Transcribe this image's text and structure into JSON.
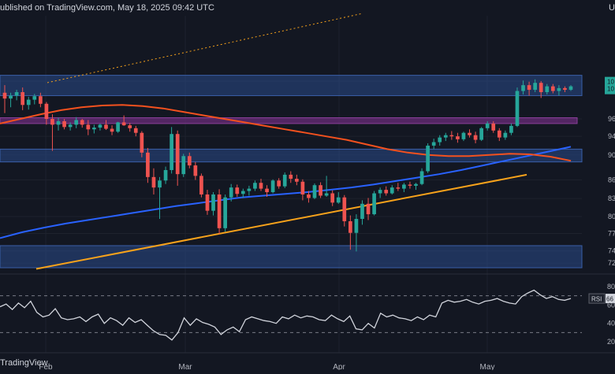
{
  "header": {
    "published_text": "ublished on TradingView.com, May 18, 2025 09:42 UTC",
    "corner_text": "U"
  },
  "brand": {
    "text": "TradingView"
  },
  "colors": {
    "background": "#131722",
    "up": "#26a69a",
    "down": "#ef5350",
    "ma_short": "#f4511e",
    "ma_long": "#2962ff",
    "trendline": "#f7a21b",
    "zone_blue": "#2a4a8a",
    "zone_purple": "#6a2c7a",
    "rsi_line": "#d1d4dc",
    "grid": "#1e222d"
  },
  "chart_data": [
    {
      "type": "candlestick",
      "x_axis": {
        "ticks": [
          "Feb",
          "Mar",
          "Apr",
          "May"
        ]
      },
      "y_axis": {
        "ticks": [
          "10",
          "96",
          "94",
          "90",
          "86",
          "83",
          "80",
          "77",
          "74",
          "72"
        ],
        "range": [
          71,
          110
        ]
      },
      "price_labels": [
        "10",
        "10"
      ],
      "candles": [
        {
          "o": 101.5,
          "h": 102.8,
          "l": 98.0,
          "c": 100.5
        },
        {
          "o": 100.5,
          "h": 101.5,
          "l": 99.0,
          "c": 101.0
        },
        {
          "o": 101.0,
          "h": 102.0,
          "l": 100.2,
          "c": 101.6
        },
        {
          "o": 101.6,
          "h": 102.4,
          "l": 98.5,
          "c": 99.4
        },
        {
          "o": 99.4,
          "h": 100.8,
          "l": 98.6,
          "c": 100.3
        },
        {
          "o": 100.3,
          "h": 101.3,
          "l": 99.5,
          "c": 100.9
        },
        {
          "o": 100.9,
          "h": 101.5,
          "l": 99.0,
          "c": 99.6
        },
        {
          "o": 99.6,
          "h": 99.9,
          "l": 96.0,
          "c": 97.0
        },
        {
          "o": 97.0,
          "h": 97.8,
          "l": 91.5,
          "c": 96.0
        },
        {
          "o": 96.0,
          "h": 97.2,
          "l": 95.0,
          "c": 96.6
        },
        {
          "o": 96.6,
          "h": 97.0,
          "l": 95.2,
          "c": 95.6
        },
        {
          "o": 95.6,
          "h": 96.4,
          "l": 95.0,
          "c": 96.0
        },
        {
          "o": 96.0,
          "h": 97.3,
          "l": 95.4,
          "c": 96.8
        },
        {
          "o": 96.8,
          "h": 97.0,
          "l": 95.5,
          "c": 96.0
        },
        {
          "o": 96.0,
          "h": 96.8,
          "l": 94.2,
          "c": 95.2
        },
        {
          "o": 95.2,
          "h": 96.0,
          "l": 94.5,
          "c": 95.5
        },
        {
          "o": 95.5,
          "h": 96.2,
          "l": 95.0,
          "c": 96.0
        },
        {
          "o": 96.0,
          "h": 96.8,
          "l": 95.1,
          "c": 95.3
        },
        {
          "o": 95.3,
          "h": 95.9,
          "l": 94.2,
          "c": 94.8
        },
        {
          "o": 94.8,
          "h": 96.5,
          "l": 94.6,
          "c": 96.4
        },
        {
          "o": 96.4,
          "h": 97.6,
          "l": 95.8,
          "c": 95.9
        },
        {
          "o": 95.9,
          "h": 96.3,
          "l": 94.8,
          "c": 95.4
        },
        {
          "o": 95.4,
          "h": 95.8,
          "l": 94.0,
          "c": 94.6
        },
        {
          "o": 94.6,
          "h": 94.9,
          "l": 90.4,
          "c": 91.2
        },
        {
          "o": 91.2,
          "h": 92.0,
          "l": 86.0,
          "c": 87.0
        },
        {
          "o": 87.0,
          "h": 88.5,
          "l": 84.0,
          "c": 85.2
        },
        {
          "o": 85.2,
          "h": 87.0,
          "l": 79.8,
          "c": 86.4
        },
        {
          "o": 86.4,
          "h": 88.8,
          "l": 85.8,
          "c": 88.2
        },
        {
          "o": 88.2,
          "h": 95.6,
          "l": 87.6,
          "c": 94.4
        },
        {
          "o": 94.4,
          "h": 95.0,
          "l": 85.5,
          "c": 87.5
        },
        {
          "o": 87.5,
          "h": 91.0,
          "l": 87.0,
          "c": 90.6
        },
        {
          "o": 90.6,
          "h": 91.2,
          "l": 88.5,
          "c": 89.0
        },
        {
          "o": 89.0,
          "h": 89.6,
          "l": 86.5,
          "c": 87.2
        },
        {
          "o": 87.2,
          "h": 87.6,
          "l": 83.5,
          "c": 84.0
        },
        {
          "o": 84.0,
          "h": 84.8,
          "l": 80.5,
          "c": 81.2
        },
        {
          "o": 81.2,
          "h": 84.4,
          "l": 80.4,
          "c": 84.0
        },
        {
          "o": 84.0,
          "h": 84.9,
          "l": 77.2,
          "c": 78.2
        },
        {
          "o": 78.2,
          "h": 84.0,
          "l": 77.6,
          "c": 83.5
        },
        {
          "o": 83.5,
          "h": 85.8,
          "l": 82.8,
          "c": 85.2
        },
        {
          "o": 85.2,
          "h": 85.7,
          "l": 83.6,
          "c": 84.1
        },
        {
          "o": 84.1,
          "h": 85.0,
          "l": 83.4,
          "c": 84.6
        },
        {
          "o": 84.6,
          "h": 85.5,
          "l": 83.8,
          "c": 85.0
        },
        {
          "o": 85.0,
          "h": 86.4,
          "l": 84.6,
          "c": 86.0
        },
        {
          "o": 86.0,
          "h": 86.7,
          "l": 84.6,
          "c": 85.0
        },
        {
          "o": 85.0,
          "h": 85.6,
          "l": 83.6,
          "c": 84.4
        },
        {
          "o": 84.4,
          "h": 86.6,
          "l": 84.2,
          "c": 86.4
        },
        {
          "o": 86.4,
          "h": 86.8,
          "l": 85.0,
          "c": 85.4
        },
        {
          "o": 85.4,
          "h": 87.8,
          "l": 85.1,
          "c": 87.4
        },
        {
          "o": 87.4,
          "h": 88.0,
          "l": 86.0,
          "c": 86.7
        },
        {
          "o": 86.7,
          "h": 87.4,
          "l": 85.6,
          "c": 86.2
        },
        {
          "o": 86.2,
          "h": 86.6,
          "l": 83.0,
          "c": 84.0
        },
        {
          "o": 84.0,
          "h": 84.6,
          "l": 82.6,
          "c": 83.4
        },
        {
          "o": 83.4,
          "h": 85.9,
          "l": 83.2,
          "c": 85.6
        },
        {
          "o": 85.6,
          "h": 86.1,
          "l": 83.4,
          "c": 83.8
        },
        {
          "o": 83.8,
          "h": 87.2,
          "l": 83.6,
          "c": 84.2
        },
        {
          "o": 84.2,
          "h": 84.7,
          "l": 82.0,
          "c": 82.6
        },
        {
          "o": 82.6,
          "h": 84.4,
          "l": 82.4,
          "c": 83.5
        },
        {
          "o": 83.5,
          "h": 83.9,
          "l": 78.5,
          "c": 79.4
        },
        {
          "o": 79.4,
          "h": 80.4,
          "l": 74.5,
          "c": 77.4
        },
        {
          "o": 77.4,
          "h": 80.6,
          "l": 74.2,
          "c": 79.8
        },
        {
          "o": 79.8,
          "h": 83.0,
          "l": 78.8,
          "c": 82.4
        },
        {
          "o": 82.4,
          "h": 83.4,
          "l": 79.6,
          "c": 80.6
        },
        {
          "o": 80.6,
          "h": 84.6,
          "l": 80.4,
          "c": 84.2
        },
        {
          "o": 84.2,
          "h": 85.2,
          "l": 83.4,
          "c": 84.8
        },
        {
          "o": 84.8,
          "h": 85.4,
          "l": 83.8,
          "c": 84.2
        },
        {
          "o": 84.2,
          "h": 85.6,
          "l": 84.0,
          "c": 85.2
        },
        {
          "o": 85.2,
          "h": 86.0,
          "l": 84.6,
          "c": 85.0
        },
        {
          "o": 85.0,
          "h": 86.0,
          "l": 84.4,
          "c": 85.7
        },
        {
          "o": 85.7,
          "h": 86.2,
          "l": 85.0,
          "c": 85.5
        },
        {
          "o": 85.5,
          "h": 86.0,
          "l": 84.8,
          "c": 85.8
        },
        {
          "o": 85.8,
          "h": 88.5,
          "l": 85.6,
          "c": 88.0
        },
        {
          "o": 88.0,
          "h": 92.8,
          "l": 87.7,
          "c": 92.4
        },
        {
          "o": 92.4,
          "h": 93.6,
          "l": 91.8,
          "c": 93.0
        },
        {
          "o": 93.0,
          "h": 94.2,
          "l": 92.4,
          "c": 93.8
        },
        {
          "o": 93.8,
          "h": 94.6,
          "l": 93.2,
          "c": 94.2
        },
        {
          "o": 94.2,
          "h": 94.9,
          "l": 93.4,
          "c": 94.0
        },
        {
          "o": 94.0,
          "h": 94.6,
          "l": 92.9,
          "c": 93.5
        },
        {
          "o": 93.5,
          "h": 94.8,
          "l": 93.2,
          "c": 94.6
        },
        {
          "o": 94.6,
          "h": 95.2,
          "l": 93.8,
          "c": 94.2
        },
        {
          "o": 94.2,
          "h": 94.8,
          "l": 92.8,
          "c": 93.4
        },
        {
          "o": 93.4,
          "h": 95.6,
          "l": 93.2,
          "c": 95.4
        },
        {
          "o": 95.4,
          "h": 96.6,
          "l": 95.0,
          "c": 96.2
        },
        {
          "o": 96.2,
          "h": 96.6,
          "l": 94.6,
          "c": 95.0
        },
        {
          "o": 95.0,
          "h": 95.4,
          "l": 93.2,
          "c": 93.8
        },
        {
          "o": 93.8,
          "h": 95.0,
          "l": 93.4,
          "c": 94.6
        },
        {
          "o": 94.6,
          "h": 96.2,
          "l": 94.2,
          "c": 95.8
        },
        {
          "o": 95.8,
          "h": 102.4,
          "l": 95.6,
          "c": 101.8
        },
        {
          "o": 101.8,
          "h": 103.6,
          "l": 101.2,
          "c": 102.8
        },
        {
          "o": 102.8,
          "h": 103.4,
          "l": 101.0,
          "c": 102.0
        },
        {
          "o": 102.0,
          "h": 103.8,
          "l": 101.6,
          "c": 103.2
        },
        {
          "o": 103.2,
          "h": 103.5,
          "l": 100.6,
          "c": 101.6
        },
        {
          "o": 101.6,
          "h": 103.0,
          "l": 101.2,
          "c": 102.6
        },
        {
          "o": 102.6,
          "h": 103.0,
          "l": 101.4,
          "c": 101.8
        },
        {
          "o": 101.8,
          "h": 102.8,
          "l": 101.0,
          "c": 102.3
        },
        {
          "o": 102.3,
          "h": 102.6,
          "l": 101.6,
          "c": 102.0
        },
        {
          "o": 102.0,
          "h": 102.8,
          "l": 101.8,
          "c": 102.6
        }
      ],
      "moving_average_short": [
        96.2,
        97.0,
        97.8,
        98.5,
        99.0,
        99.3,
        99.4,
        99.2,
        98.8,
        98.2,
        97.6,
        97.0,
        96.4,
        95.8,
        95.2,
        94.6,
        94.0,
        93.4,
        92.6,
        91.8,
        91.2,
        90.8,
        90.6,
        90.6,
        90.8,
        91.0,
        90.9,
        90.5,
        89.8
      ],
      "moving_average_long": [
        76.5,
        77.5,
        78.3,
        79.0,
        79.6,
        80.2,
        80.8,
        81.4,
        82.0,
        82.5,
        83.0,
        83.5,
        83.8,
        84.1,
        84.4,
        84.8,
        85.2,
        85.7,
        86.3,
        86.9,
        87.5,
        88.2,
        89.0,
        89.8,
        90.6,
        91.4,
        92.2
      ],
      "trendline": {
        "start": 71.2,
        "end": 87.4
      },
      "zones": [
        {
          "name": "resistance-upper",
          "from": 101.0,
          "to": 104.5
        },
        {
          "name": "resistance-mid",
          "from": 96.2,
          "to": 97.2
        },
        {
          "name": "support-mid",
          "from": 89.6,
          "to": 91.8
        },
        {
          "name": "support-lower",
          "from": 71.4,
          "to": 75.2
        }
      ],
      "grid": true,
      "legend": false
    },
    {
      "type": "line",
      "label": "RSI",
      "value_label": "66",
      "y_axis": {
        "ticks": [
          "80",
          "60",
          "40",
          "20"
        ],
        "range": [
          15,
          85
        ]
      },
      "levels": [
        70,
        30
      ],
      "values": [
        58,
        61,
        55,
        62,
        57,
        64,
        52,
        47,
        49,
        56,
        46,
        44,
        45,
        47,
        42,
        47,
        50,
        40,
        46,
        43,
        38,
        46,
        41,
        44,
        38,
        32,
        28,
        27,
        22,
        30,
        46,
        38,
        45,
        41,
        39,
        36,
        28,
        33,
        36,
        31,
        44,
        47,
        45,
        43,
        42,
        40,
        47,
        45,
        49,
        46,
        48,
        47,
        44,
        43,
        49,
        45,
        42,
        48,
        34,
        33,
        40,
        35,
        51,
        47,
        49,
        46,
        45,
        43,
        47,
        44,
        49,
        47,
        62,
        65,
        63,
        64,
        66,
        63,
        61,
        64,
        65,
        67,
        64,
        62,
        61,
        69,
        73,
        76,
        71,
        67,
        69,
        66,
        65,
        67
      ]
    }
  ]
}
